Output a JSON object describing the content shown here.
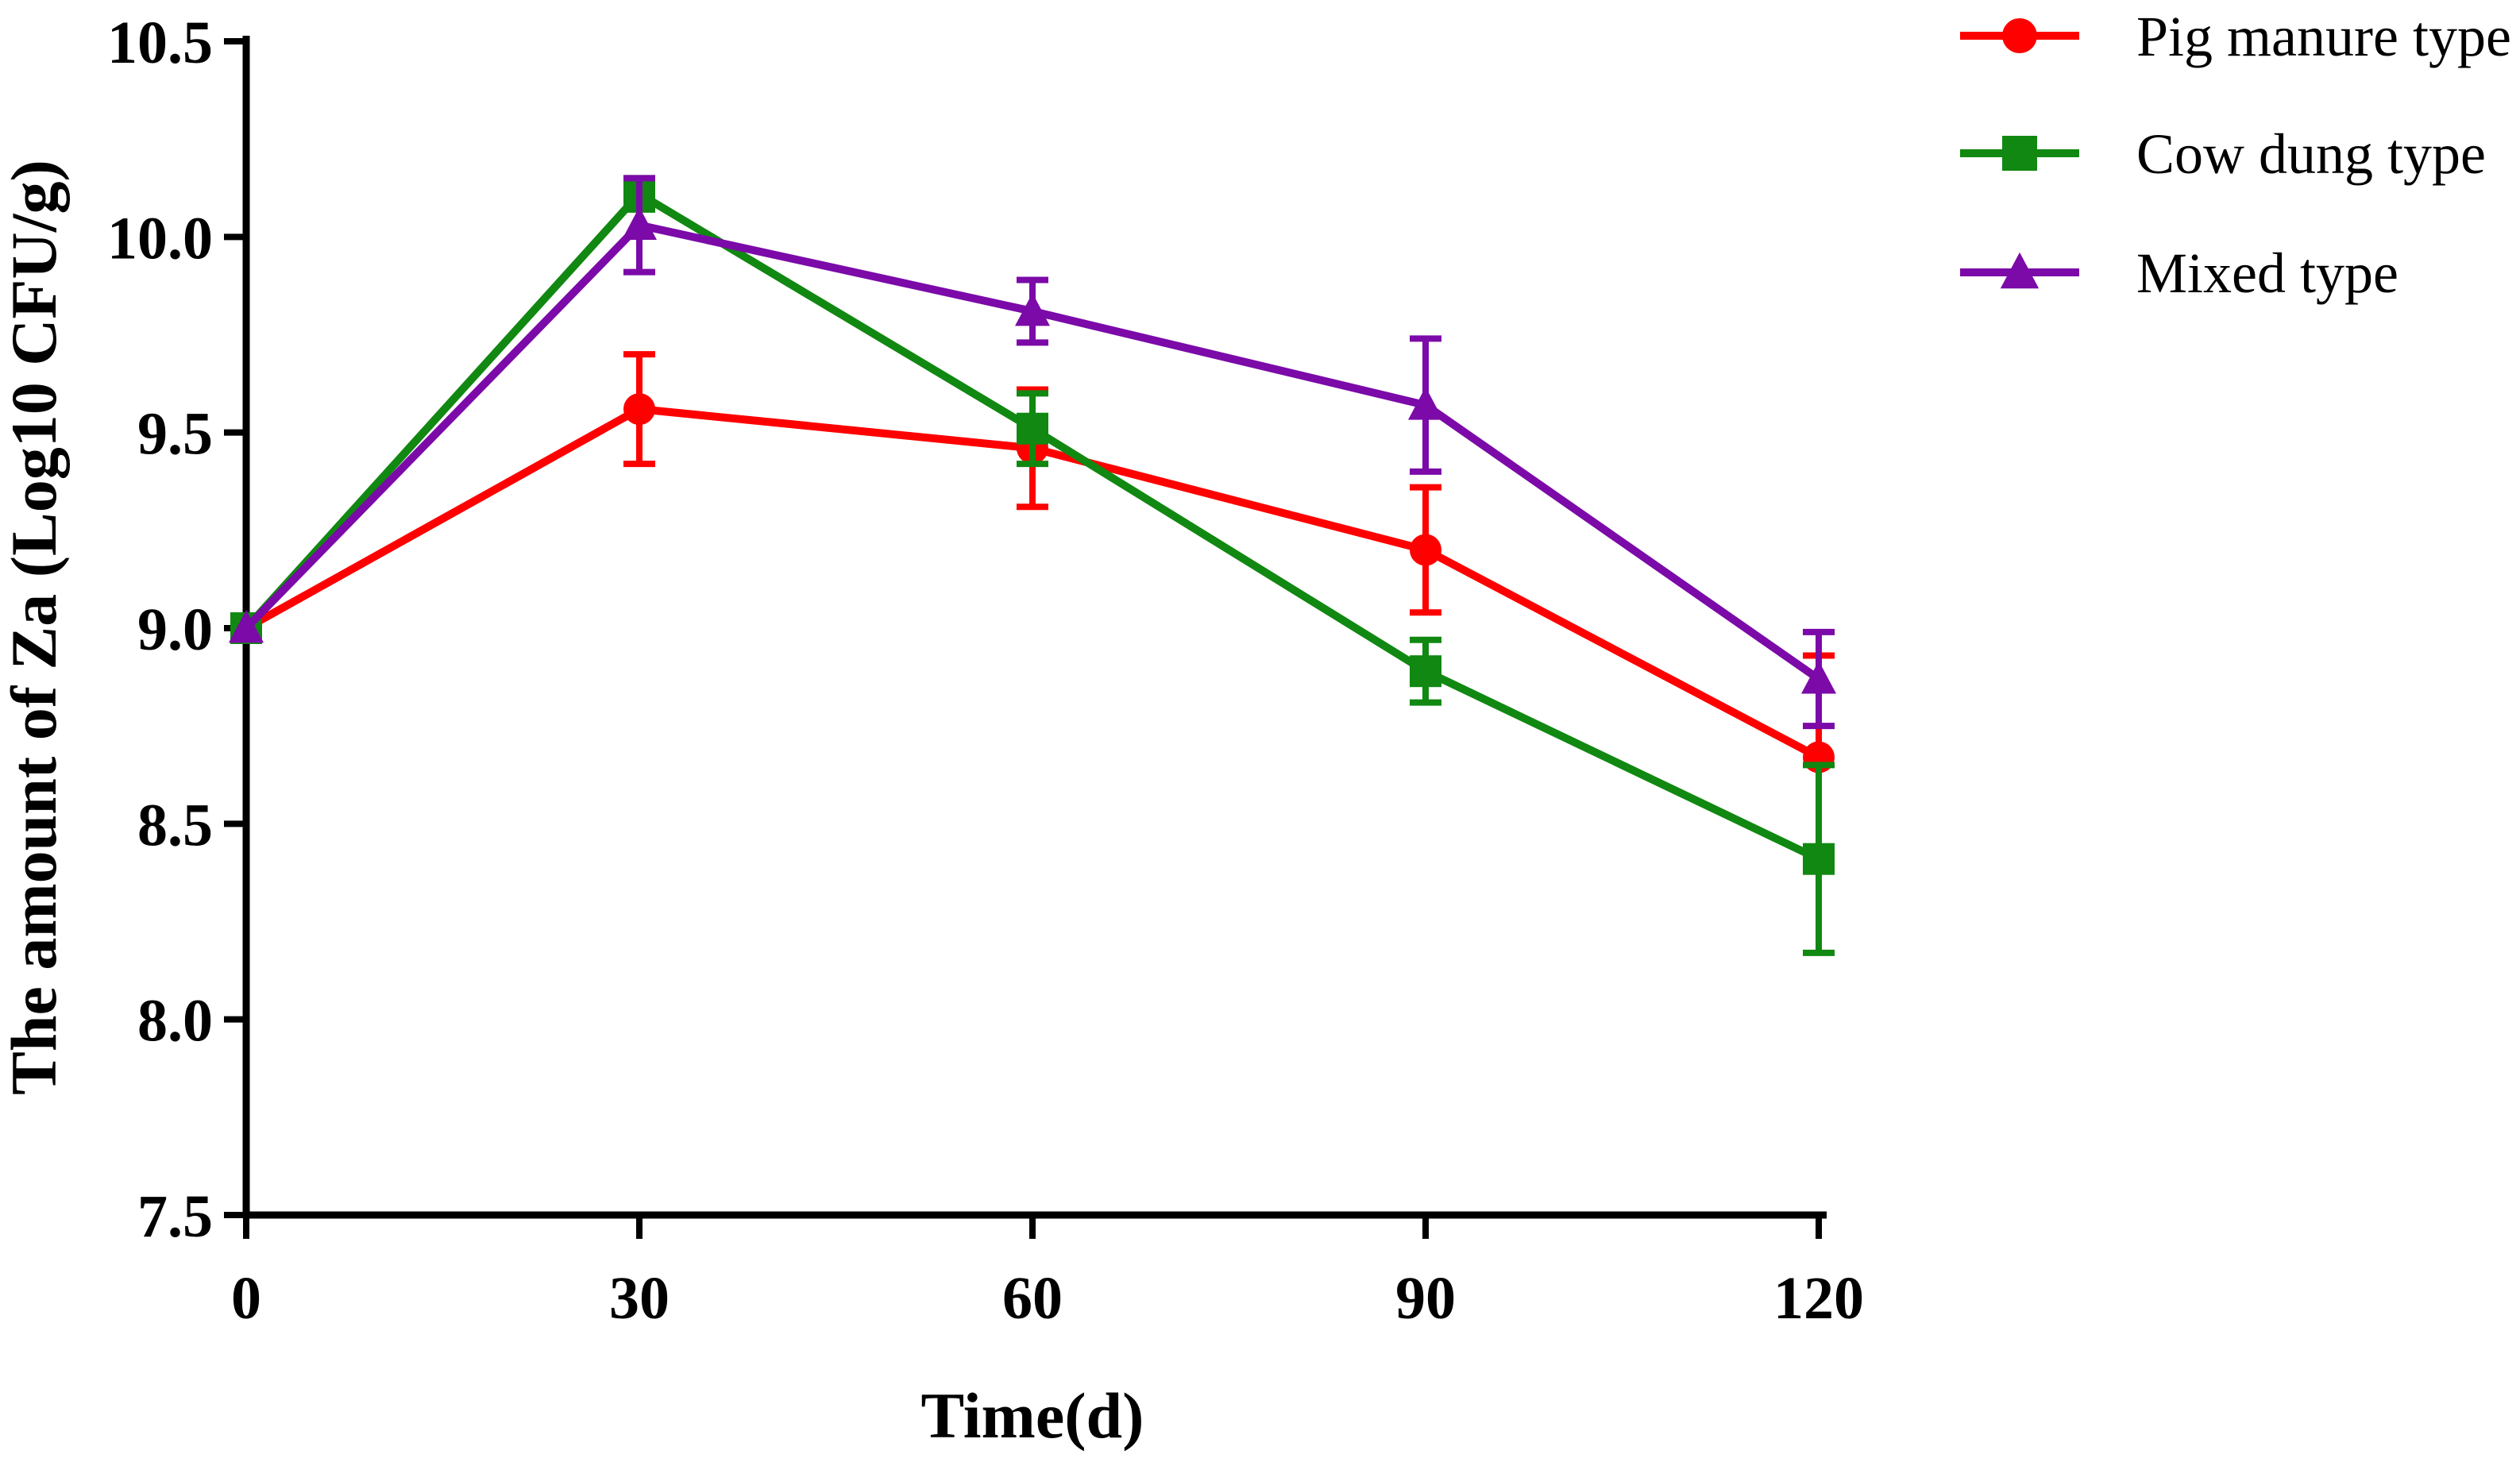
{
  "chart_data": {
    "type": "line",
    "title": "",
    "xlabel": "Time(d)",
    "ylabel": "The amount of Za (Log10 CFU/g)",
    "x": [
      0,
      30,
      60,
      90,
      120
    ],
    "xlim": [
      0,
      120
    ],
    "ylim": [
      7.5,
      10.5
    ],
    "x_ticks": [
      0,
      30,
      60,
      90,
      120
    ],
    "x_tick_labels": [
      "0",
      "30",
      "60",
      "90",
      "120"
    ],
    "y_ticks": [
      7.5,
      8.0,
      8.5,
      9.0,
      9.5,
      10.0,
      10.5
    ],
    "y_tick_labels": [
      "7.5",
      "8.0",
      "8.5",
      "9.0",
      "9.5",
      "10.0",
      "10.5"
    ],
    "grid": false,
    "legend_position": "top-right",
    "series": [
      {
        "name": "Pig manure type",
        "color": "#ff0000",
        "marker": "circle",
        "values": [
          9.0,
          9.56,
          9.46,
          9.2,
          8.67
        ],
        "errors": [
          0.0,
          0.14,
          0.15,
          0.16,
          0.26
        ]
      },
      {
        "name": "Cow dung type",
        "color": "#118811",
        "marker": "square",
        "values": [
          9.0,
          10.11,
          9.51,
          8.89,
          8.41
        ],
        "errors": [
          0.0,
          0.04,
          0.09,
          0.08,
          0.24
        ]
      },
      {
        "name": "Mixed type",
        "color": "#7b0aa8",
        "marker": "triangle",
        "values": [
          9.0,
          10.03,
          9.81,
          9.57,
          8.87
        ],
        "errors": [
          0.0,
          0.12,
          0.08,
          0.17,
          0.12
        ]
      }
    ]
  }
}
